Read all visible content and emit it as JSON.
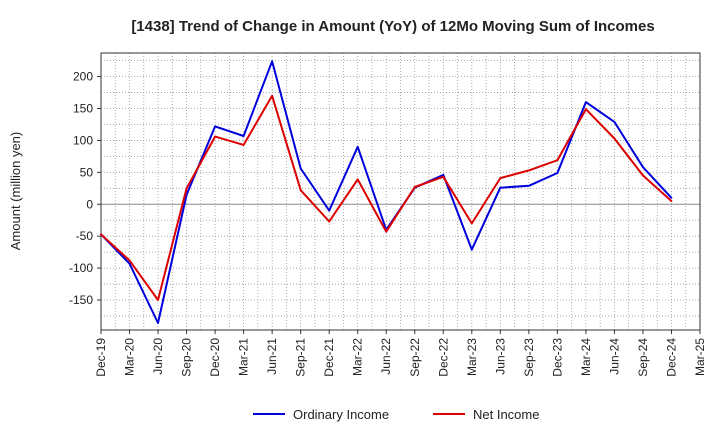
{
  "chart_data": {
    "type": "line",
    "title": "[1438]  Trend of Change in Amount (YoY) of 12Mo Moving Sum of Incomes",
    "xlabel": "",
    "ylabel": "Amount (million yen)",
    "categories": [
      "Dec-19",
      "Mar-20",
      "Jun-20",
      "Sep-20",
      "Dec-20",
      "Mar-21",
      "Jun-21",
      "Sep-21",
      "Dec-21",
      "Mar-22",
      "Jun-22",
      "Sep-22",
      "Dec-22",
      "Mar-23",
      "Jun-23",
      "Sep-23",
      "Dec-23",
      "Mar-24",
      "Jun-24",
      "Sep-24",
      "Dec-24",
      "Mar-25"
    ],
    "ylim": [
      -197,
      237
    ],
    "yticks": [
      -150,
      -100,
      -50,
      0,
      50,
      100,
      150,
      200
    ],
    "grid": true,
    "legend_position": "bottom",
    "series": [
      {
        "name": "Ordinary Income",
        "color": "#0000dd",
        "values": [
          -47,
          -93,
          -186,
          15,
          122,
          107,
          224,
          56,
          -10,
          90,
          -40,
          26,
          46,
          -71,
          26,
          29,
          49,
          160,
          129,
          58,
          10,
          null
        ]
      },
      {
        "name": "Net Income",
        "color": "#dd0000",
        "values": [
          -47,
          -88,
          -150,
          25,
          106,
          93,
          170,
          22,
          -27,
          39,
          -43,
          27,
          43,
          -30,
          41,
          53,
          69,
          149,
          103,
          45,
          5,
          null
        ]
      }
    ]
  }
}
